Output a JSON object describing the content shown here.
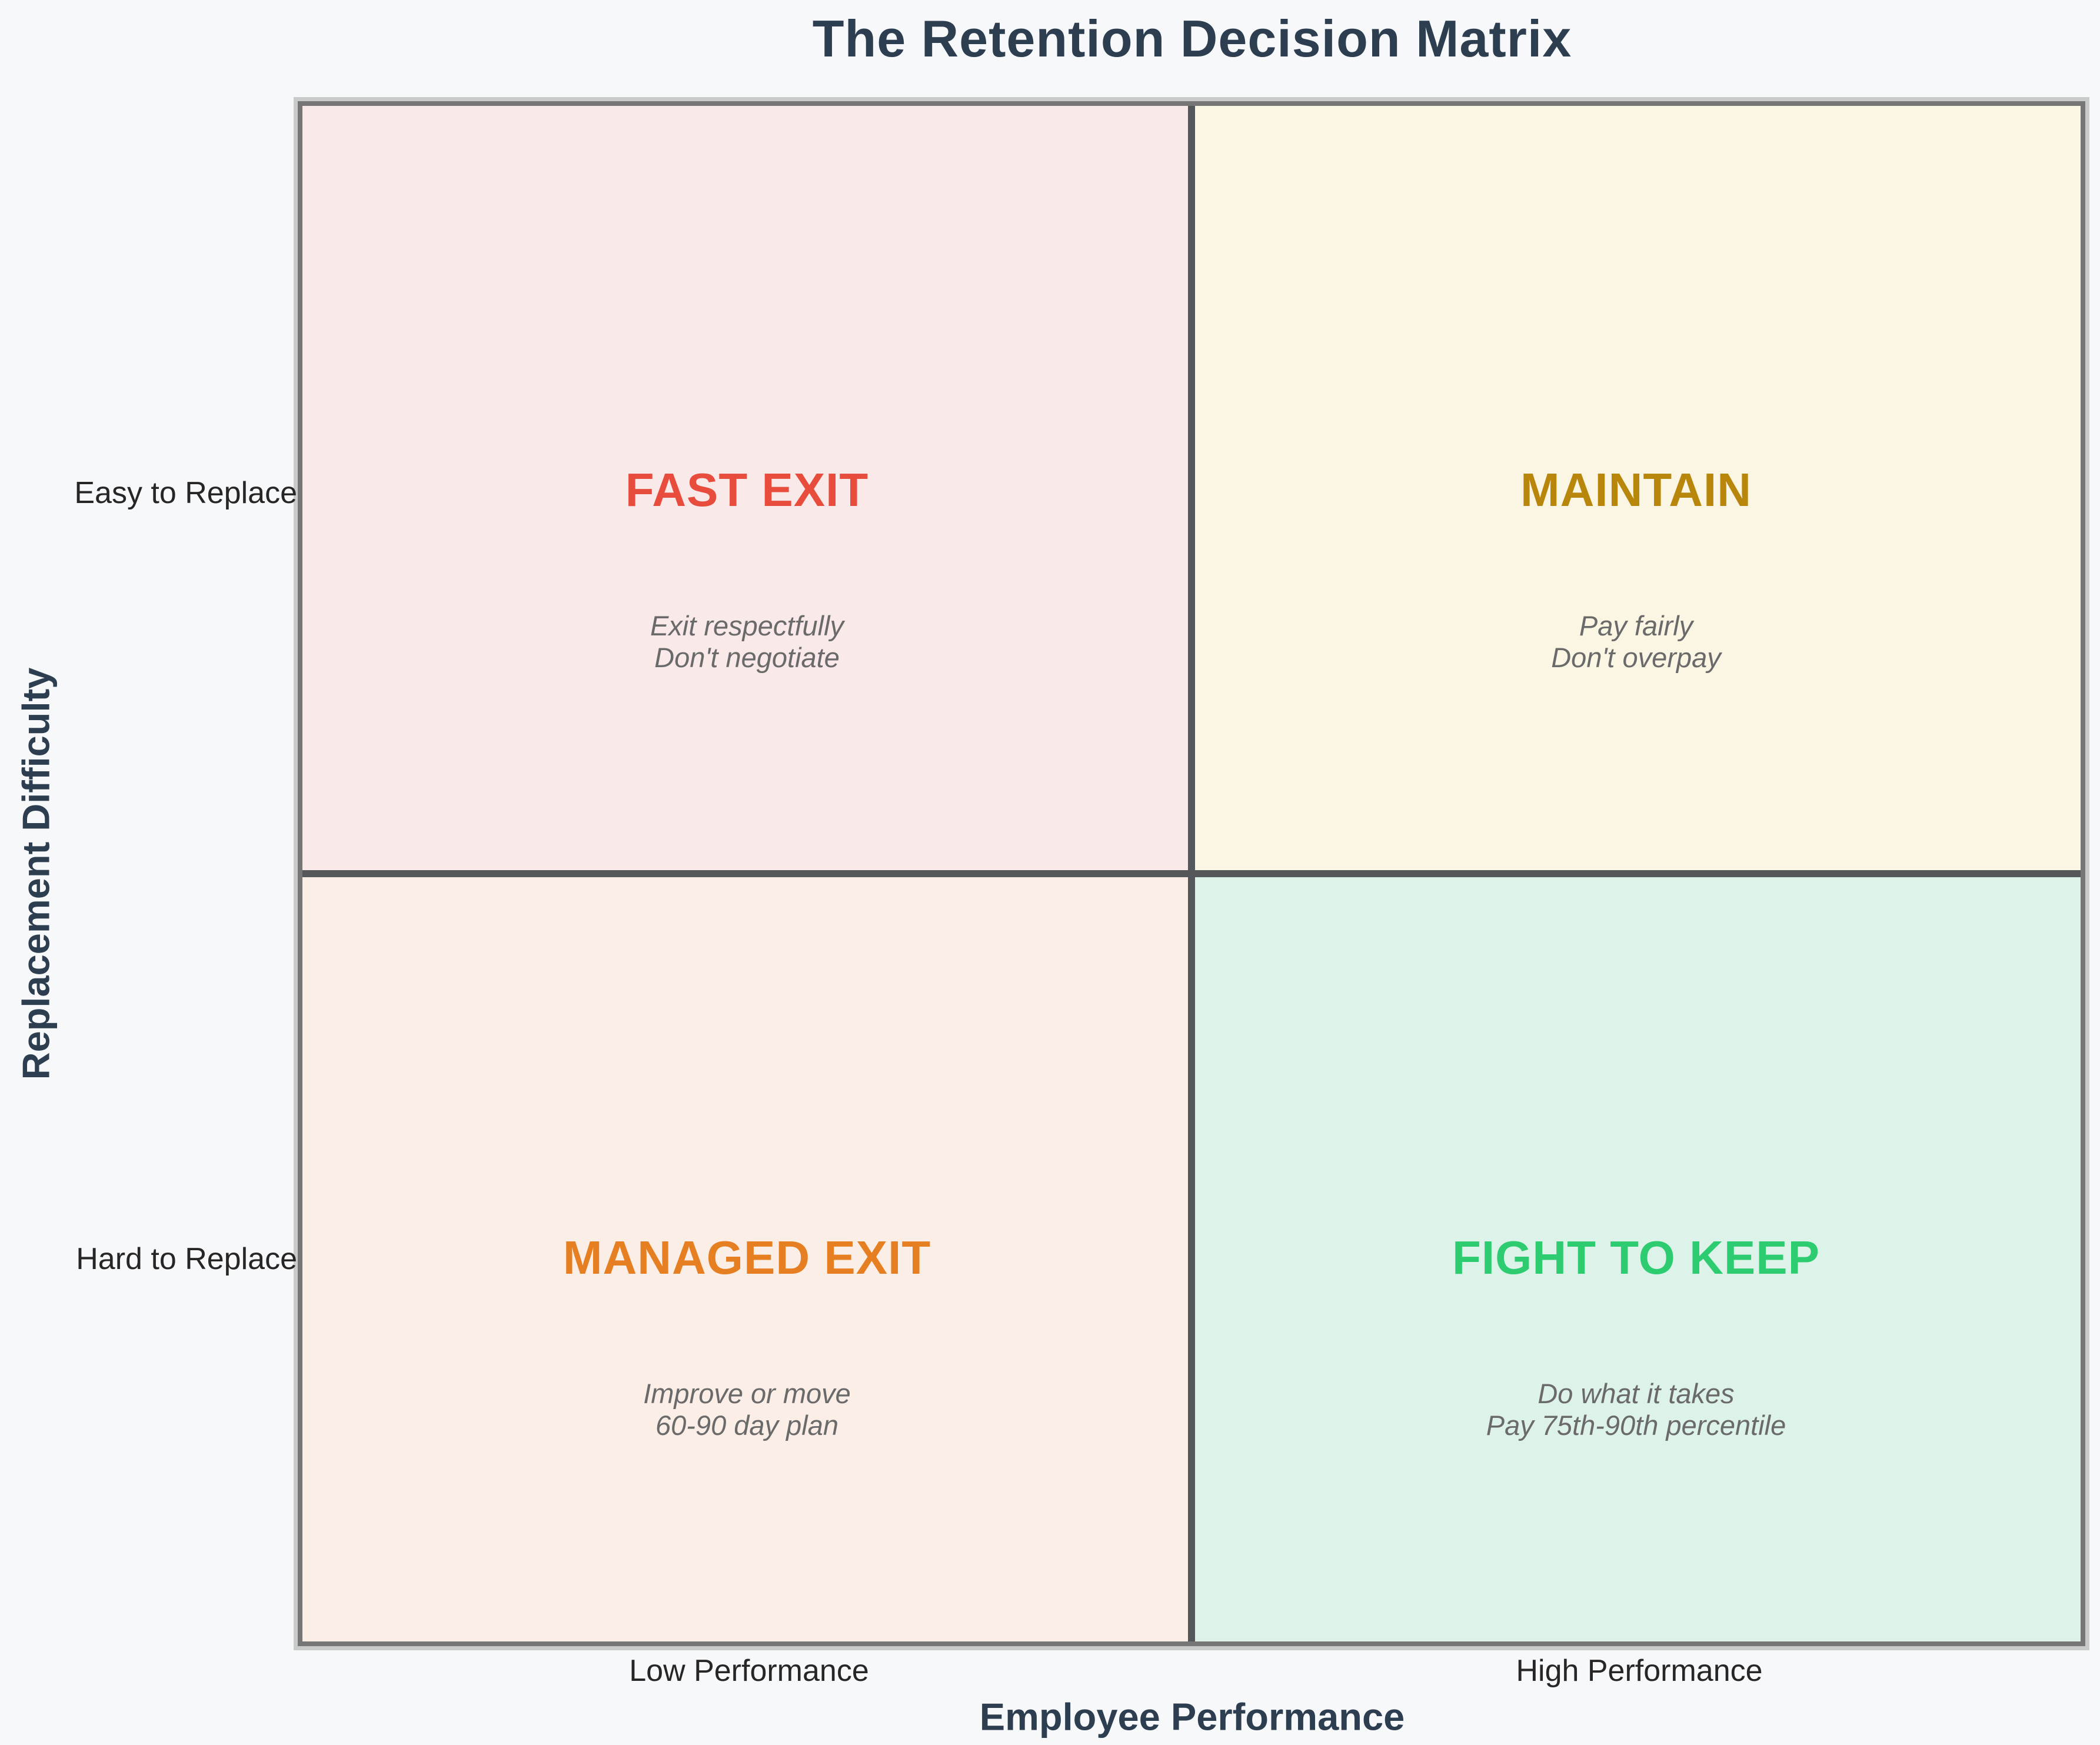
{
  "title": "The Retention Decision Matrix",
  "axes": {
    "x": {
      "label": "Employee Performance",
      "ticks": [
        "Low Performance",
        "High Performance"
      ]
    },
    "y": {
      "label": "Replacement Difficulty",
      "ticks": [
        "Easy to Replace",
        "Hard to Replace"
      ]
    }
  },
  "quadrants": [
    {
      "position": "top-left",
      "title": "FAST EXIT",
      "subtitle": "Exit respectfully\nDon't negotiate",
      "title_color": "#e74c3c",
      "bg_color": "#fae9e9"
    },
    {
      "position": "top-right",
      "title": "MAINTAIN",
      "subtitle": "Pay fairly\nDon't overpay",
      "title_color": "#b8860b",
      "bg_color": "#fbf6e3"
    },
    {
      "position": "bottom-left",
      "title": "MANAGED EXIT",
      "subtitle": "Improve or move\n60-90 day plan",
      "title_color": "#e67e22",
      "bg_color": "#fbeee7"
    },
    {
      "position": "bottom-right",
      "title": "FIGHT TO KEEP",
      "subtitle": "Do what it takes\nPay 75th-90th percentile",
      "title_color": "#2ecc71",
      "bg_color": "#ddf2e8"
    }
  ],
  "colors": {
    "page_background": "#f7f8fa",
    "heading_text": "#2c3e50",
    "tick_text": "#262626",
    "subtitle_text": "#6a6a6a",
    "matrix_border": "#767676",
    "matrix_border_halo": "#c9cbcb",
    "divider": "#55585a"
  }
}
